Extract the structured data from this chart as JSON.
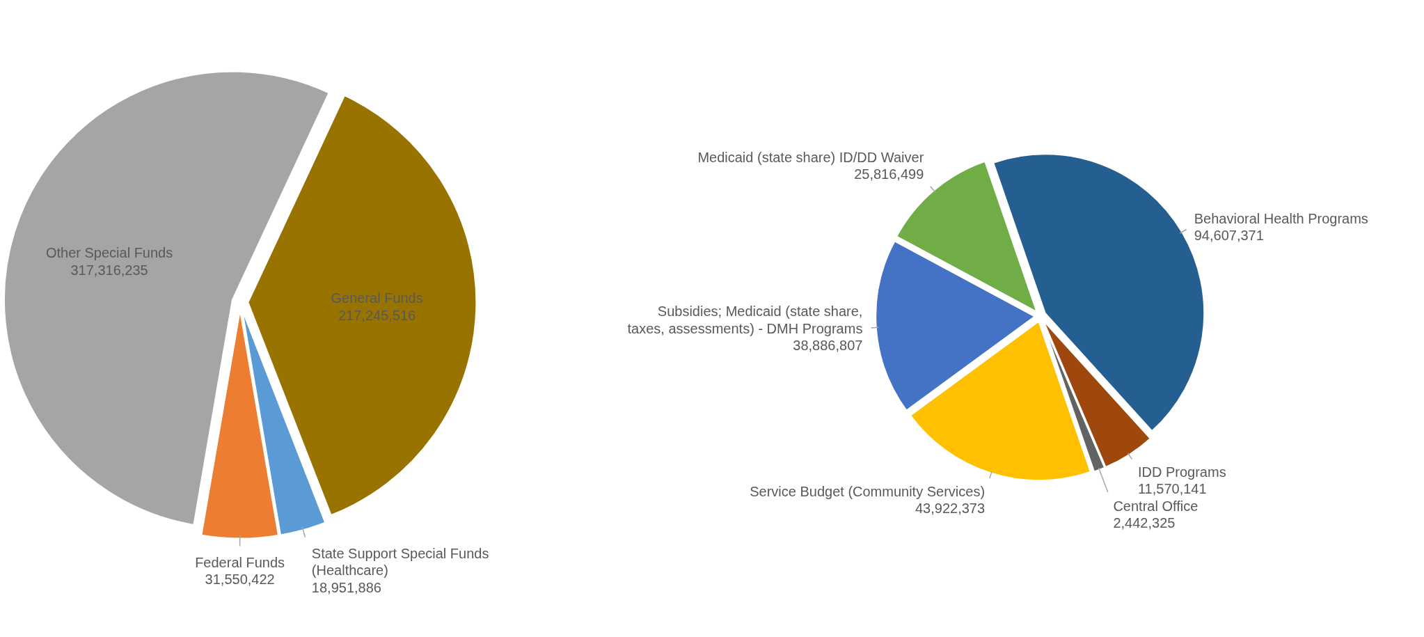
{
  "chart_data": [
    {
      "type": "pie",
      "categories": [
        "General Funds",
        "State Support Special Funds (Healthcare)",
        "Federal Funds",
        "Other Special Funds"
      ],
      "values": [
        217245516,
        18951886,
        31550422,
        317316235
      ],
      "value_labels": [
        "217,245,516",
        "18,951,886",
        "31,550,422",
        "317,316,235"
      ],
      "colors": [
        "#997300",
        "#5b9bd5",
        "#ed7d31",
        "#a5a5a5"
      ]
    },
    {
      "type": "pie",
      "categories": [
        "Behavioral Health Programs",
        "IDD Programs",
        "Central Office",
        "Service Budget (Community Services)",
        "Subsidies; Medicaid (state share, taxes, assessments) - DMH Programs",
        "Medicaid (state share) ID/DD Waiver"
      ],
      "values": [
        94607371,
        11570141,
        2442325,
        43922373,
        38886807,
        25816499
      ],
      "value_labels": [
        "94,607,371",
        "11,570,141",
        "2,442,325",
        "43,922,373",
        "38,886,807",
        "25,816,499"
      ],
      "colors": [
        "#255e91",
        "#9e480e",
        "#636363",
        "#ffc000",
        "#4472c4",
        "#70ad47"
      ]
    }
  ]
}
